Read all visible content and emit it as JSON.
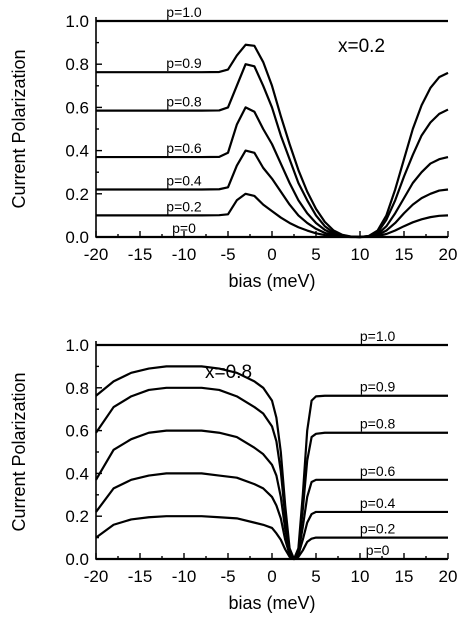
{
  "chart_data": [
    {
      "type": "line",
      "panel_label": "x=0.2",
      "xlabel": "bias (meV)",
      "ylabel": "Current Polarization",
      "xlim": [
        -20,
        20
      ],
      "ylim": [
        0,
        1.0
      ],
      "xticks": [
        -20,
        -15,
        -10,
        -5,
        0,
        5,
        10,
        15,
        20
      ],
      "xtick_labels": [
        "-20",
        "-15",
        "-10",
        "-5",
        "0",
        "5",
        "10",
        "15",
        "20"
      ],
      "yticks": [
        0,
        0.2,
        0.4,
        0.6,
        0.8,
        1.0
      ],
      "ytick_labels": [
        "0.0",
        "0.2",
        "0.4",
        "0.6",
        "0.8",
        "1.0"
      ],
      "grid": false,
      "x": [
        -20,
        -8,
        -6,
        -5,
        -4,
        -3,
        -2,
        -1,
        0,
        1,
        2,
        3,
        4,
        5,
        6,
        7,
        8,
        9,
        10,
        11,
        12,
        13,
        14,
        15,
        16,
        17,
        18,
        19,
        20
      ],
      "series": [
        {
          "name": "p=1.0",
          "label_x": -10,
          "values": [
            1.0,
            1.0,
            1.0,
            1.0,
            1.0,
            1.0,
            1.0,
            1.0,
            1.0,
            1.0,
            1.0,
            1.0,
            1.0,
            1.0,
            1.0,
            1.0,
            1.0,
            1.0,
            1.0,
            1.0,
            1.0,
            1.0,
            1.0,
            1.0,
            1.0,
            1.0,
            1.0,
            1.0,
            1.0
          ]
        },
        {
          "name": "p=0.9",
          "label_x": -10,
          "values": [
            0.763,
            0.763,
            0.764,
            0.775,
            0.84,
            0.89,
            0.885,
            0.81,
            0.7,
            0.56,
            0.43,
            0.31,
            0.21,
            0.13,
            0.07,
            0.03,
            0.01,
            0.002,
            0.0,
            0.005,
            0.03,
            0.1,
            0.22,
            0.36,
            0.5,
            0.61,
            0.69,
            0.74,
            0.76
          ]
        },
        {
          "name": "p=0.8",
          "label_x": -10,
          "values": [
            0.585,
            0.585,
            0.586,
            0.6,
            0.7,
            0.8,
            0.79,
            0.7,
            0.6,
            0.47,
            0.36,
            0.25,
            0.17,
            0.1,
            0.05,
            0.02,
            0.008,
            0.001,
            0.0,
            0.004,
            0.02,
            0.08,
            0.17,
            0.28,
            0.38,
            0.47,
            0.53,
            0.57,
            0.59
          ]
        },
        {
          "name": "p=0.6",
          "label_x": -10,
          "values": [
            0.37,
            0.37,
            0.371,
            0.39,
            0.52,
            0.6,
            0.58,
            0.5,
            0.43,
            0.34,
            0.25,
            0.17,
            0.11,
            0.065,
            0.033,
            0.013,
            0.005,
            0.001,
            0.0,
            0.003,
            0.013,
            0.05,
            0.11,
            0.18,
            0.25,
            0.3,
            0.34,
            0.36,
            0.37
          ]
        },
        {
          "name": "p=0.4",
          "label_x": -10,
          "values": [
            0.22,
            0.22,
            0.221,
            0.23,
            0.33,
            0.4,
            0.39,
            0.32,
            0.27,
            0.21,
            0.15,
            0.1,
            0.065,
            0.038,
            0.019,
            0.008,
            0.003,
            0.001,
            0.0,
            0.002,
            0.008,
            0.03,
            0.065,
            0.11,
            0.15,
            0.18,
            0.2,
            0.215,
            0.22
          ]
        },
        {
          "name": "p=0.2",
          "label_x": -10,
          "values": [
            0.1,
            0.1,
            0.101,
            0.105,
            0.17,
            0.2,
            0.19,
            0.15,
            0.12,
            0.09,
            0.065,
            0.045,
            0.03,
            0.017,
            0.009,
            0.004,
            0.0015,
            0.0,
            0.0,
            0.001,
            0.004,
            0.014,
            0.03,
            0.05,
            0.068,
            0.082,
            0.092,
            0.098,
            0.1
          ]
        },
        {
          "name": "p=0",
          "label_x": -10,
          "values": [
            0,
            0,
            0,
            0,
            0,
            0,
            0,
            0,
            0,
            0,
            0,
            0,
            0,
            0,
            0,
            0,
            0,
            0,
            0,
            0,
            0,
            0,
            0,
            0,
            0,
            0,
            0,
            0,
            0
          ]
        }
      ]
    },
    {
      "type": "line",
      "panel_label": "x=0.8",
      "xlabel": "bias (meV)",
      "ylabel": "Current Polarization",
      "xlim": [
        -20,
        20
      ],
      "ylim": [
        0,
        1.0
      ],
      "xticks": [
        -20,
        -15,
        -10,
        -5,
        0,
        5,
        10,
        15,
        20
      ],
      "xtick_labels": [
        "-20",
        "-15",
        "-10",
        "-5",
        "0",
        "5",
        "10",
        "15",
        "20"
      ],
      "yticks": [
        0,
        0.2,
        0.4,
        0.6,
        0.8,
        1.0
      ],
      "ytick_labels": [
        "0.0",
        "0.2",
        "0.4",
        "0.6",
        "0.8",
        "1.0"
      ],
      "grid": false,
      "x": [
        -20,
        -18,
        -16,
        -14,
        -12,
        -10,
        -8,
        -6,
        -4,
        -2,
        -1,
        0,
        0.5,
        1,
        1.5,
        2,
        2.5,
        3,
        3.5,
        4,
        4.5,
        5,
        6,
        10,
        15,
        20
      ],
      "series": [
        {
          "name": "p=1.0",
          "label_x": 12,
          "values": [
            1.0,
            1.0,
            1.0,
            1.0,
            1.0,
            1.0,
            1.0,
            1.0,
            1.0,
            1.0,
            1.0,
            1.0,
            1.0,
            1.0,
            1.0,
            1.0,
            1.0,
            1.0,
            1.0,
            1.0,
            1.0,
            1.0,
            1.0,
            1.0,
            1.0,
            1.0
          ]
        },
        {
          "name": "p=0.9",
          "label_x": 12,
          "values": [
            0.763,
            0.83,
            0.87,
            0.89,
            0.9,
            0.9,
            0.9,
            0.89,
            0.87,
            0.83,
            0.8,
            0.74,
            0.66,
            0.5,
            0.25,
            0.05,
            0.0,
            0.05,
            0.3,
            0.6,
            0.74,
            0.76,
            0.763,
            0.763,
            0.763,
            0.763
          ]
        },
        {
          "name": "p=0.8",
          "label_x": 12,
          "values": [
            0.59,
            0.71,
            0.76,
            0.79,
            0.8,
            0.8,
            0.8,
            0.79,
            0.76,
            0.71,
            0.68,
            0.62,
            0.55,
            0.41,
            0.2,
            0.04,
            0.0,
            0.04,
            0.23,
            0.46,
            0.57,
            0.585,
            0.59,
            0.59,
            0.59,
            0.59
          ]
        },
        {
          "name": "p=0.6",
          "label_x": 12,
          "values": [
            0.37,
            0.51,
            0.56,
            0.59,
            0.6,
            0.6,
            0.6,
            0.59,
            0.57,
            0.52,
            0.49,
            0.44,
            0.39,
            0.29,
            0.14,
            0.03,
            0.0,
            0.03,
            0.15,
            0.29,
            0.36,
            0.37,
            0.37,
            0.37,
            0.37,
            0.37
          ]
        },
        {
          "name": "p=0.4",
          "label_x": 12,
          "values": [
            0.22,
            0.33,
            0.37,
            0.39,
            0.4,
            0.4,
            0.4,
            0.39,
            0.38,
            0.35,
            0.33,
            0.29,
            0.25,
            0.19,
            0.09,
            0.02,
            0.0,
            0.02,
            0.09,
            0.17,
            0.21,
            0.22,
            0.22,
            0.22,
            0.22,
            0.22
          ]
        },
        {
          "name": "p=0.2",
          "label_x": 12,
          "values": [
            0.1,
            0.16,
            0.185,
            0.195,
            0.2,
            0.2,
            0.2,
            0.195,
            0.19,
            0.17,
            0.16,
            0.145,
            0.12,
            0.09,
            0.045,
            0.01,
            0.0,
            0.01,
            0.04,
            0.08,
            0.095,
            0.1,
            0.1,
            0.1,
            0.1,
            0.1
          ]
        },
        {
          "name": "p=0",
          "label_x": 12,
          "values": [
            0,
            0,
            0,
            0,
            0,
            0,
            0,
            0,
            0,
            0,
            0,
            0,
            0,
            0,
            0,
            0,
            0,
            0,
            0,
            0,
            0,
            0,
            0,
            0,
            0,
            0
          ]
        }
      ]
    }
  ]
}
